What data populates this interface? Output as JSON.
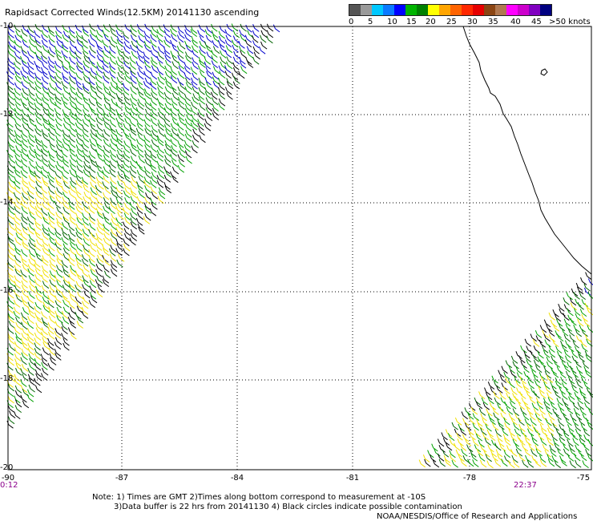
{
  "title": "Rapidsact Corrected Winds(12.5KM) 20141130 ascending",
  "legend": {
    "colors": [
      "#555555",
      "#9a9a9a",
      "#00c8ff",
      "#0a7aff",
      "#0000ff",
      "#00b400",
      "#008000",
      "#ffff00",
      "#ffa500",
      "#ff6400",
      "#ff2800",
      "#e60000",
      "#8b4513",
      "#b07850",
      "#ff00ff",
      "#cc00cc",
      "#8000c0",
      "#000080"
    ],
    "labels": [
      "0",
      "5",
      "10",
      "15",
      "20",
      "25",
      "30",
      "35",
      "40",
      "45",
      ">50 knots"
    ]
  },
  "axes": {
    "lon_ticks": [
      "-90",
      "-87",
      "-84",
      "-81",
      "-78",
      "-75"
    ],
    "lat_ticks": [
      "-10",
      "-12",
      "-14",
      "-16",
      "-18",
      "-20"
    ]
  },
  "times": {
    "left": "0:12",
    "right": "22:37"
  },
  "notes": {
    "line1": "Note: 1) Times are GMT 2)Times along bottom correspond to measurement at -10S",
    "line2": "3)Data buffer is 22 hrs from 20141130 4) Black circles indicate possible contamination",
    "credit": "NOAA/NESDIS/Office of Research and Applications"
  },
  "wind_colors": {
    "blue": "#0000cc",
    "green": "#00a000",
    "dark_green": "#006400",
    "yellow": "#f0e000",
    "black": "#000000"
  }
}
